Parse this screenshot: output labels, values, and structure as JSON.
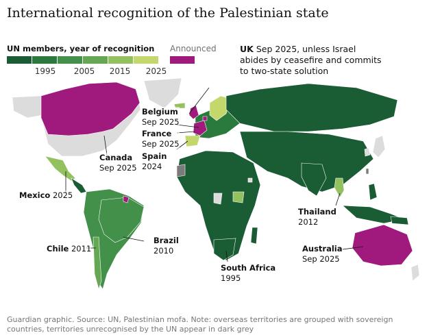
{
  "title": "International recognition of the Palestinian state",
  "legend": {
    "title": "UN members, year of recognition",
    "ticks": [
      "1995",
      "2005",
      "2015",
      "2025"
    ],
    "colors": [
      "#1a5c34",
      "#2a7a3e",
      "#43904a",
      "#66a754",
      "#94c160",
      "#c4d76c",
      "#efe98a"
    ],
    "announced_label": "Announced",
    "announced_color": "#a0197d",
    "unrecognised_color": "#7b7b7b",
    "no_recognition_color": "#dcdcdc"
  },
  "uk_note": {
    "name": "UK",
    "text": "Sep 2025, unless Israel abides by ceasefire and commits to two-state solution"
  },
  "labels": {
    "belgium": {
      "name": "Belgium",
      "year": "Sep 2025"
    },
    "france": {
      "name": "France",
      "year": "Sep 2025"
    },
    "spain": {
      "name": "Spain",
      "year": "2024"
    },
    "canada": {
      "name": "Canada",
      "year": "Sep 2025"
    },
    "mexico": {
      "name": "Mexico",
      "year": "2025"
    },
    "brazil": {
      "name": "Brazil",
      "year": "2010"
    },
    "chile": {
      "name": "Chile",
      "year": "2011"
    },
    "south_africa": {
      "name": "South Africa",
      "year": "1995"
    },
    "thailand": {
      "name": "Thailand",
      "year": "2012"
    },
    "australia": {
      "name": "Australia",
      "year": "Sep 2025"
    }
  },
  "footer": "Guardian graphic. Source: UN, Palestinian mofa. Note: overseas territories are grouped with sovereign countries, territories unrecognised by the UN appear in dark grey"
}
